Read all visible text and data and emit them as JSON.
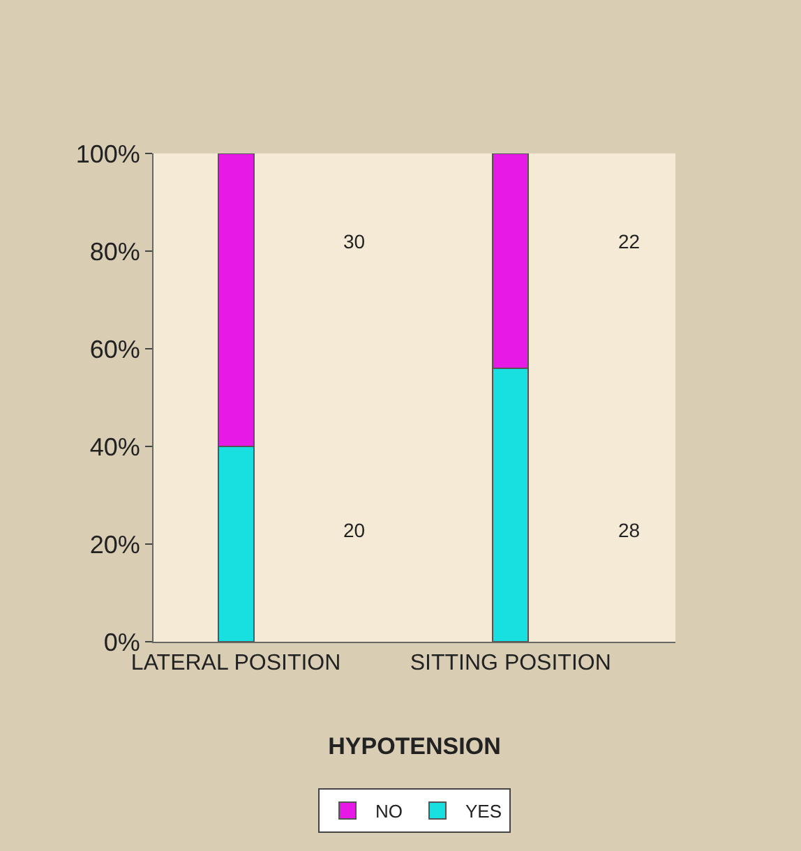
{
  "chart_data": {
    "type": "bar",
    "stacked": true,
    "xlabel": "HYPOTENSION",
    "categories": [
      "LATERAL POSITION",
      "SITTING POSITION"
    ],
    "series": [
      {
        "name": "YES",
        "color": "#19e0e0",
        "values": [
          40,
          56
        ]
      },
      {
        "name": "NO",
        "color": "#e619e6",
        "values": [
          60,
          44
        ]
      }
    ],
    "annotations": [
      "20",
      "30",
      "28",
      "22"
    ],
    "ylim": [
      0,
      100
    ],
    "yticks": [
      {
        "value": 0,
        "label": "0%"
      },
      {
        "value": 20,
        "label": "20%"
      },
      {
        "value": 40,
        "label": "40%"
      },
      {
        "value": 60,
        "label": "60%"
      },
      {
        "value": 80,
        "label": "80%"
      },
      {
        "value": 100,
        "label": "100%"
      }
    ],
    "grid": false,
    "legend": "bottom"
  }
}
